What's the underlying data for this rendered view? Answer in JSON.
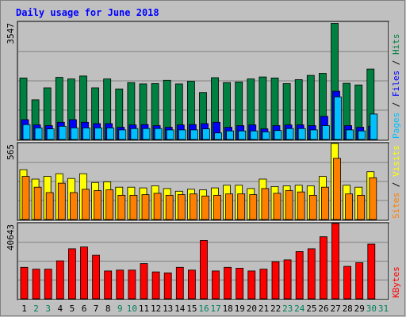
{
  "chart_data": {
    "type": "bar",
    "title": "Daily usage for June 2018",
    "categories": [
      "1",
      "2",
      "3",
      "4",
      "5",
      "6",
      "7",
      "8",
      "9",
      "10",
      "11",
      "12",
      "13",
      "14",
      "15",
      "16",
      "17",
      "18",
      "19",
      "20",
      "21",
      "22",
      "23",
      "24",
      "25",
      "26",
      "27",
      "28",
      "29",
      "30",
      "31"
    ],
    "weekend_days": [
      "2",
      "3",
      "9",
      "10",
      "16",
      "17",
      "23",
      "24",
      "30",
      "31"
    ],
    "panels": [
      {
        "max_label": "3547",
        "ymax": 3547,
        "labels": [
          {
            "text": "Pages",
            "color": "#00c0ff"
          },
          {
            "text": "Files",
            "color": "#0000ff"
          },
          {
            "text": "Hits",
            "color": "#008040"
          }
        ],
        "series": [
          {
            "name": "Hits",
            "color": "#008040",
            "values": [
              1860,
              1200,
              1560,
              1880,
              1830,
              1920,
              1560,
              1830,
              1530,
              1720,
              1680,
              1690,
              1790,
              1680,
              1760,
              1420,
              1870,
              1720,
              1740,
              1830,
              1890,
              1860,
              1690,
              1810,
              1940,
              2000,
              3510,
              1700,
              1650,
              2130,
              null
            ]
          },
          {
            "name": "Files",
            "color": "#0000ff",
            "values": [
              600,
              440,
              420,
              520,
              600,
              520,
              480,
              480,
              370,
              440,
              450,
              420,
              370,
              440,
              450,
              480,
              520,
              370,
              420,
              440,
              320,
              420,
              440,
              440,
              420,
              700,
              1460,
              420,
              370,
              400,
              null
            ]
          },
          {
            "name": "Pages",
            "color": "#00c0ff",
            "values": [
              450,
              350,
              320,
              400,
              350,
              350,
              350,
              350,
              290,
              330,
              330,
              330,
              290,
              290,
              290,
              320,
              200,
              260,
              260,
              260,
              230,
              270,
              330,
              330,
              290,
              420,
              1290,
              290,
              260,
              770,
              null
            ]
          }
        ]
      },
      {
        "max_label": "565",
        "ymax": 565,
        "labels": [
          {
            "text": "Sites",
            "color": "#ff8000"
          },
          {
            "text": "Visits",
            "color": "#ffff00"
          }
        ],
        "series": [
          {
            "name": "Visits",
            "color": "#ffff00",
            "values": [
              370,
              300,
              320,
              340,
              305,
              340,
              275,
              280,
              240,
              240,
              235,
              250,
              230,
              210,
              225,
              220,
              235,
              255,
              255,
              230,
              300,
              245,
              250,
              255,
              250,
              320,
              565,
              255,
              240,
              355,
              null
            ]
          },
          {
            "name": "Sites",
            "color": "#ff8000",
            "values": [
              320,
              240,
              200,
              270,
              200,
              225,
              215,
              220,
              180,
              180,
              185,
              195,
              180,
              185,
              190,
              175,
              180,
              190,
              190,
              185,
              230,
              195,
              215,
              205,
              180,
              240,
              455,
              190,
              180,
              310,
              null
            ]
          }
        ]
      },
      {
        "max_label": "40643",
        "ymax": 40643,
        "labels": [
          {
            "text": "KBytes",
            "color": "#ff0000"
          }
        ],
        "series": [
          {
            "name": "KBytes",
            "color": "#ff0000",
            "values": [
              17000,
              16000,
              16000,
              20500,
              27000,
              28000,
              23500,
              15000,
              15500,
              15500,
              19000,
              14500,
              14000,
              17000,
              15500,
              31500,
              15000,
              17000,
              16500,
              15000,
              16000,
              20000,
              21000,
              25500,
              27000,
              33500,
              40643,
              17500,
              19500,
              29500,
              null
            ]
          }
        ]
      }
    ]
  },
  "colors": {
    "background": "#c0c0c0",
    "title_color": "#0000ff",
    "weekday_label": "#000000",
    "weekend_label": "#00805c"
  }
}
